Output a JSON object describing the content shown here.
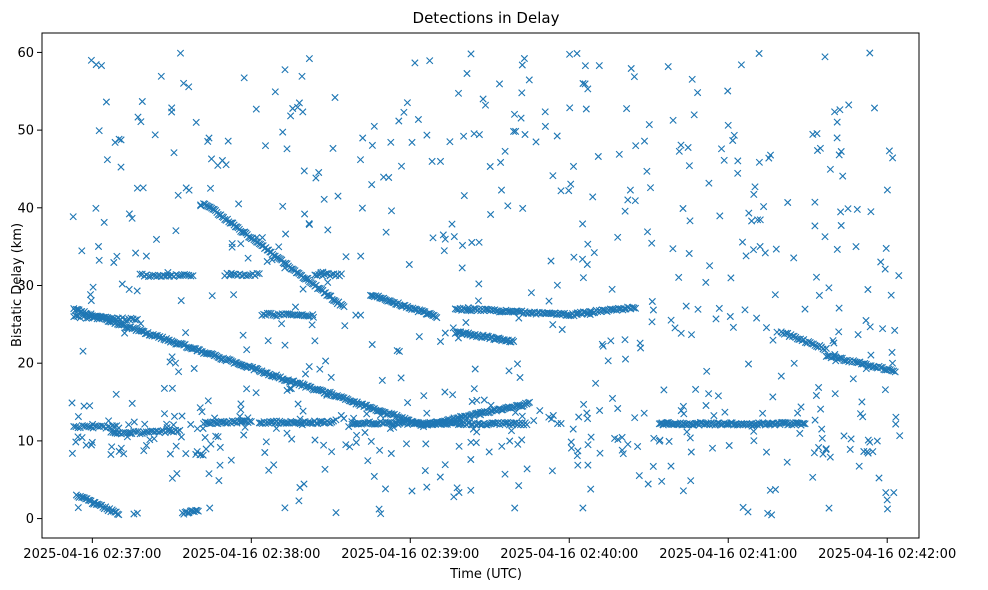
{
  "chart_data": {
    "type": "scatter",
    "title": "Detections in Delay",
    "xlabel": "Time (UTC)",
    "ylabel": "Bistatic Delay (km)",
    "marker": "x",
    "color": "#1f77b4",
    "xlim_seconds": [
      -19,
      312
    ],
    "ylim": [
      -2.5,
      62.5
    ],
    "xtick_seconds": [
      0,
      60,
      120,
      180,
      240,
      300
    ],
    "xtick_labels": [
      "2025-04-16 02:37:00",
      "2025-04-16 02:38:00",
      "2025-04-16 02:39:00",
      "2025-04-16 02:40:00",
      "2025-04-16 02:41:00",
      "2025-04-16 02:42:00"
    ],
    "yticks": [
      0,
      10,
      20,
      30,
      40,
      50,
      60
    ],
    "ytick_labels": [
      "0",
      "10",
      "20",
      "30",
      "40",
      "50",
      "60"
    ],
    "tracks": [
      {
        "name": "track-a",
        "x0": 42,
        "y0": 40.7,
        "x1": 95,
        "y1": 27.2,
        "step": 0.5
      },
      {
        "name": "track-b",
        "x0": -7,
        "y0": 27.0,
        "x1": 125,
        "y1": 12.0,
        "step": 0.5
      },
      {
        "name": "track-c",
        "x0": 125,
        "y0": 12.0,
        "x1": 165,
        "y1": 14.8,
        "step": 0.5
      },
      {
        "name": "track-d",
        "x0": 105,
        "y0": 28.8,
        "x1": 130,
        "y1": 26.0,
        "step": 0.5
      },
      {
        "name": "track-e",
        "x0": 137,
        "y0": 24.0,
        "x1": 159,
        "y1": 22.8,
        "step": 0.5
      },
      {
        "name": "track-f",
        "x0": 137,
        "y0": 27.0,
        "x1": 183,
        "y1": 26.2,
        "step": 0.6
      },
      {
        "name": "track-g",
        "x0": 183,
        "y0": 26.4,
        "x1": 205,
        "y1": 27.2,
        "step": 0.6
      },
      {
        "name": "track-h",
        "x0": 260,
        "y0": 24.0,
        "x1": 277,
        "y1": 21.8,
        "step": 0.6
      },
      {
        "name": "track-i",
        "x0": 277,
        "y0": 21.0,
        "x1": 303,
        "y1": 19.0,
        "step": 0.6
      },
      {
        "name": "track-j",
        "x0": -6,
        "y0": 3.0,
        "x1": 10,
        "y1": 0.6,
        "step": 0.5
      },
      {
        "name": "track-k",
        "x0": 34,
        "y0": 0.6,
        "x1": 40,
        "y1": 1.1,
        "step": 0.5
      },
      {
        "name": "track-l",
        "x0": 214,
        "y0": 12.2,
        "x1": 269,
        "y1": 12.2,
        "step": 0.5
      },
      {
        "name": "track-m",
        "x0": 98,
        "y0": 12.3,
        "x1": 164,
        "y1": 12.2,
        "step": 0.6
      },
      {
        "name": "track-n",
        "x0": 63,
        "y0": 12.4,
        "x1": 91,
        "y1": 12.4,
        "step": 0.6
      },
      {
        "name": "track-o",
        "x0": 42,
        "y0": 12.3,
        "x1": 60,
        "y1": 12.5,
        "step": 0.6
      },
      {
        "name": "track-p",
        "x0": -7,
        "y0": 11.8,
        "x1": 10,
        "y1": 11.8,
        "step": 0.8
      },
      {
        "name": "track-q",
        "x0": -7,
        "y0": 26.0,
        "x1": 17,
        "y1": 25.6,
        "step": 0.8
      },
      {
        "name": "track-r",
        "x0": 7,
        "y0": 11.0,
        "x1": 33,
        "y1": 11.2,
        "step": 0.8
      },
      {
        "name": "track-s",
        "x0": 64,
        "y0": 26.3,
        "x1": 82,
        "y1": 26.1,
        "step": 0.7
      },
      {
        "name": "track-t",
        "x0": 84,
        "y0": 31.4,
        "x1": 94,
        "y1": 31.4,
        "step": 0.7
      },
      {
        "name": "track-u",
        "x0": 18,
        "y0": 31.3,
        "x1": 38,
        "y1": 31.3,
        "step": 0.8
      },
      {
        "name": "track-v",
        "x0": 50,
        "y0": 31.4,
        "x1": 63,
        "y1": 31.4,
        "step": 0.8
      }
    ],
    "noise_points": 690,
    "noise_seed": 20250416,
    "noise_xrange": [
      -8,
      305
    ],
    "noise_yrange": [
      0.3,
      60
    ]
  }
}
